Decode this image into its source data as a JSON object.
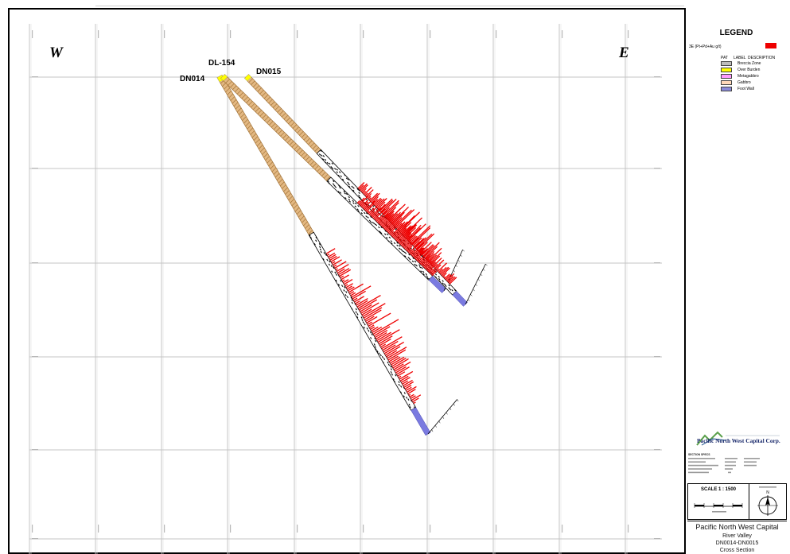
{
  "compass": {
    "west": "W",
    "east": "E"
  },
  "drillholes": [
    {
      "id": "DL-154"
    },
    {
      "id": "DN014"
    },
    {
      "id": "DN015"
    }
  ],
  "legend": {
    "title": "LEGEND",
    "assay_label": "3E (Pt+Pd+Au g/t)",
    "assay_color": "#ee0000",
    "columns": [
      "PAT",
      "LABEL",
      "DESCRIPTION"
    ],
    "lithologies": [
      {
        "label": "Breccia Zone",
        "color": "#bdbdbd"
      },
      {
        "label": "Over Burden",
        "color": "#ffff00"
      },
      {
        "label": "Metagabbro",
        "color": "#ff99ff"
      },
      {
        "label": "Gabbro",
        "color": "#ffd8b8"
      },
      {
        "label": "Foot Wall",
        "color": "#8a8ad8"
      }
    ]
  },
  "logo": {
    "company": "Pacific North West Capital Corp."
  },
  "specs": {
    "heading": "SECTION SPECS"
  },
  "scale": {
    "label": "SCALE 1 : 1500"
  },
  "north_arrow": {
    "label": "N"
  },
  "title_block": {
    "company": "Pacific North West Capital",
    "project": "River Valley",
    "holes": "DN0014-DN0015",
    "view": "Cross Section"
  },
  "colors": {
    "grid": "#c4c4c4",
    "hole_fill": "#e3b882",
    "hole_stroke": "#9a6a2e",
    "assay": "#ee0000",
    "footwall": "#7a7ae0",
    "overburden": "#ffff00"
  }
}
